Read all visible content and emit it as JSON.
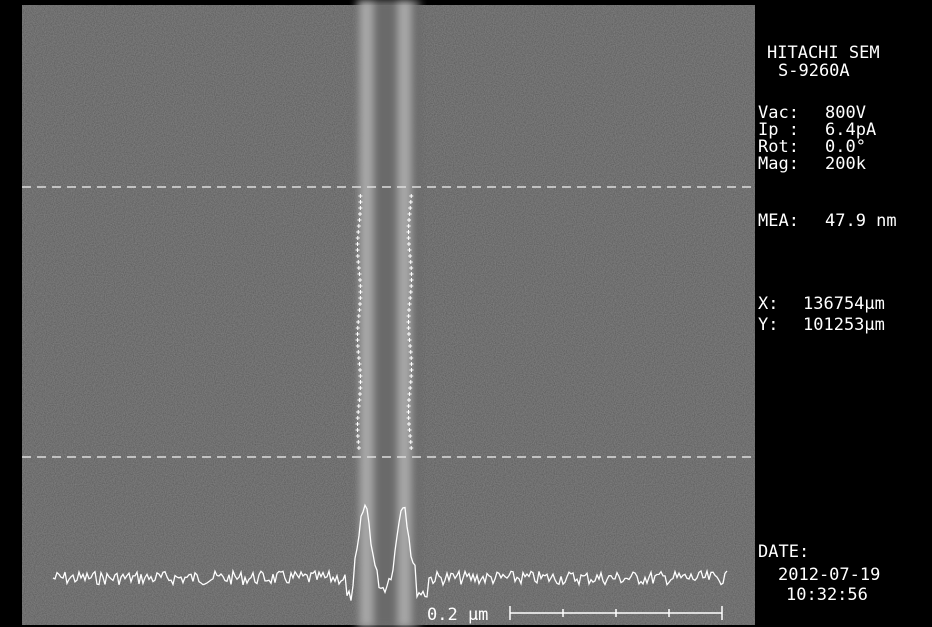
{
  "instrument": {
    "name": "HITACHI SEM",
    "model": "S-9260A"
  },
  "conditions": [
    {
      "label": "Vac:",
      "value": "800V"
    },
    {
      "label": "Ip :",
      "value": "6.4pA"
    },
    {
      "label": "Rot:",
      "value": "0.0°"
    },
    {
      "label": "Mag:",
      "value": "200k"
    }
  ],
  "measurement": {
    "label": "MEA:",
    "value": "47.9 nm"
  },
  "stage": [
    {
      "label": "X:",
      "value": "136754µm"
    },
    {
      "label": "Y:",
      "value": "101253µm"
    }
  ],
  "date": {
    "label": "DATE:",
    "date": "2012-07-19",
    "time": "10:32:56"
  },
  "scale_bar": {
    "label": "0.2 µm"
  }
}
